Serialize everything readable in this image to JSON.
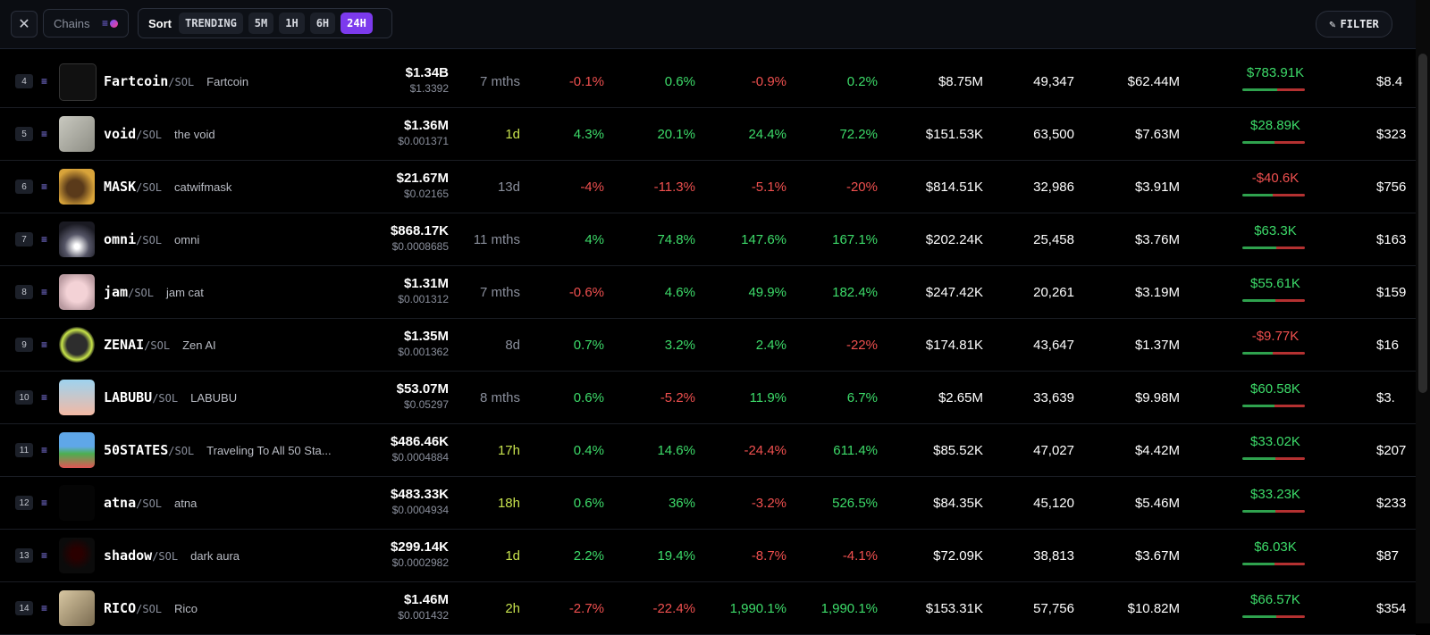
{
  "toolbar": {
    "chains_label": "Chains",
    "sort_label": "Sort",
    "sort_options": [
      "TRENDING",
      "5M",
      "1H",
      "6H",
      "24H"
    ],
    "active_sort": "24H",
    "filter_label": "FILTER"
  },
  "colors": {
    "positive": "#3ddc6a",
    "negative": "#f0504f",
    "accent": "#7c3aed",
    "new_age": "#c7e24d"
  },
  "rows": [
    {
      "rank": "4",
      "symbol": "Fartcoin",
      "quote": "/SOL",
      "name": "Fartcoin",
      "price": "$1.34B",
      "price_sub": "$1.3392",
      "age": "7 mths",
      "m5": "-0.1%",
      "h1": "0.6%",
      "h6": "-0.9%",
      "h24": "0.2%",
      "volume": "$8.75M",
      "txns": "49,347",
      "liquidity": "$62.44M",
      "makers": "$783.91K",
      "buy_ratio": 0.55,
      "last": "$8.4"
    },
    {
      "rank": "5",
      "symbol": "void",
      "quote": "/SOL",
      "name": "the void",
      "price": "$1.36M",
      "price_sub": "$0.001371",
      "age": "1d",
      "m5": "4.3%",
      "h1": "20.1%",
      "h6": "24.4%",
      "h24": "72.2%",
      "volume": "$151.53K",
      "txns": "63,500",
      "liquidity": "$7.63M",
      "makers": "$28.89K",
      "buy_ratio": 0.52,
      "last": "$323"
    },
    {
      "rank": "6",
      "symbol": "MASK",
      "quote": "/SOL",
      "name": "catwifmask",
      "price": "$21.67M",
      "price_sub": "$0.02165",
      "age": "13d",
      "m5": "-4%",
      "h1": "-11.3%",
      "h6": "-5.1%",
      "h24": "-20%",
      "volume": "$814.51K",
      "txns": "32,986",
      "liquidity": "$3.91M",
      "makers": "-$40.6K",
      "buy_ratio": 0.48,
      "last": "$756"
    },
    {
      "rank": "7",
      "symbol": "omni",
      "quote": "/SOL",
      "name": "omni",
      "price": "$868.17K",
      "price_sub": "$0.0008685",
      "age": "11 mths",
      "m5": "4%",
      "h1": "74.8%",
      "h6": "147.6%",
      "h24": "167.1%",
      "volume": "$202.24K",
      "txns": "25,458",
      "liquidity": "$3.76M",
      "makers": "$63.3K",
      "buy_ratio": 0.54,
      "last": "$163"
    },
    {
      "rank": "8",
      "symbol": "jam",
      "quote": "/SOL",
      "name": "jam cat",
      "price": "$1.31M",
      "price_sub": "$0.001312",
      "age": "7 mths",
      "m5": "-0.6%",
      "h1": "4.6%",
      "h6": "49.9%",
      "h24": "182.4%",
      "volume": "$247.42K",
      "txns": "20,261",
      "liquidity": "$3.19M",
      "makers": "$55.61K",
      "buy_ratio": 0.53,
      "last": "$159"
    },
    {
      "rank": "9",
      "symbol": "ZENAI",
      "quote": "/SOL",
      "name": "Zen AI",
      "price": "$1.35M",
      "price_sub": "$0.001362",
      "age": "8d",
      "m5": "0.7%",
      "h1": "3.2%",
      "h6": "2.4%",
      "h24": "-22%",
      "volume": "$174.81K",
      "txns": "43,647",
      "liquidity": "$1.37M",
      "makers": "-$9.77K",
      "buy_ratio": 0.49,
      "last": "$16"
    },
    {
      "rank": "10",
      "symbol": "LABUBU",
      "quote": "/SOL",
      "name": "LABUBU",
      "price": "$53.07M",
      "price_sub": "$0.05297",
      "age": "8 mths",
      "m5": "0.6%",
      "h1": "-5.2%",
      "h6": "11.9%",
      "h24": "6.7%",
      "volume": "$2.65M",
      "txns": "33,639",
      "liquidity": "$9.98M",
      "makers": "$60.58K",
      "buy_ratio": 0.51,
      "last": "$3."
    },
    {
      "rank": "11",
      "symbol": "50STATES",
      "quote": "/SOL",
      "name": "Traveling To All 50 Sta...",
      "price": "$486.46K",
      "price_sub": "$0.0004884",
      "age": "17h",
      "m5": "0.4%",
      "h1": "14.6%",
      "h6": "-24.4%",
      "h24": "611.4%",
      "volume": "$85.52K",
      "txns": "47,027",
      "liquidity": "$4.42M",
      "makers": "$33.02K",
      "buy_ratio": 0.53,
      "last": "$207"
    },
    {
      "rank": "12",
      "symbol": "atna",
      "quote": "/SOL",
      "name": "atna",
      "price": "$483.33K",
      "price_sub": "$0.0004934",
      "age": "18h",
      "m5": "0.6%",
      "h1": "36%",
      "h6": "-3.2%",
      "h24": "526.5%",
      "volume": "$84.35K",
      "txns": "45,120",
      "liquidity": "$5.46M",
      "makers": "$33.23K",
      "buy_ratio": 0.53,
      "last": "$233"
    },
    {
      "rank": "13",
      "symbol": "shadow",
      "quote": "/SOL",
      "name": "dark aura",
      "price": "$299.14K",
      "price_sub": "$0.0002982",
      "age": "1d",
      "m5": "2.2%",
      "h1": "19.4%",
      "h6": "-8.7%",
      "h24": "-4.1%",
      "volume": "$72.09K",
      "txns": "38,813",
      "liquidity": "$3.67M",
      "makers": "$6.03K",
      "buy_ratio": 0.51,
      "last": "$87"
    },
    {
      "rank": "14",
      "symbol": "RICO",
      "quote": "/SOL",
      "name": "Rico",
      "price": "$1.46M",
      "price_sub": "$0.001432",
      "age": "2h",
      "m5": "-2.7%",
      "h1": "-22.4%",
      "h6": "1,990.1%",
      "h24": "1,990.1%",
      "volume": "$153.31K",
      "txns": "57,756",
      "liquidity": "$10.82M",
      "makers": "$66.57K",
      "buy_ratio": 0.54,
      "last": "$354"
    }
  ]
}
